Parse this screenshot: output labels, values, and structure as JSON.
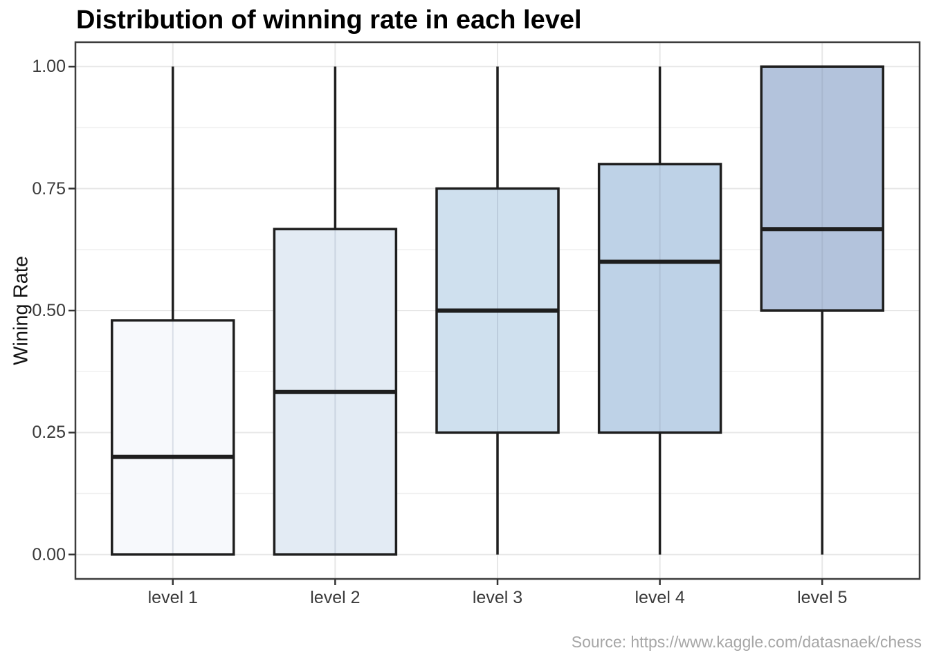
{
  "title": "Distribution of winning rate in each level",
  "source": "Source: https://www.kaggle.com/datasnaek/chess",
  "chart_data": {
    "type": "boxplot",
    "title": "Distribution of winning rate in each level",
    "xlabel": "",
    "ylabel": "Wining Rate",
    "ylim": [
      0,
      1
    ],
    "y_axis_expansion": [
      -0.05,
      1.05
    ],
    "grid": "major-and-minor",
    "yticks": [
      0.0,
      0.25,
      0.5,
      0.75,
      1.0
    ],
    "ytick_labels": [
      "0.00",
      "0.25",
      "0.50",
      "0.75",
      "1.00"
    ],
    "yticks_minor": [
      0.125,
      0.375,
      0.625,
      0.875
    ],
    "categories": [
      "level 1",
      "level 2",
      "level 3",
      "level 4",
      "level 5"
    ],
    "series": [
      {
        "category": "level 1",
        "min": 0.0,
        "q1": 0.0,
        "median": 0.2,
        "q3": 0.48,
        "max": 1.0,
        "fill": "#f7f9fc"
      },
      {
        "category": "level 2",
        "min": 0.0,
        "q1": 0.0,
        "median": 0.333,
        "q3": 0.667,
        "max": 1.0,
        "fill": "#e3ebf4"
      },
      {
        "category": "level 3",
        "min": 0.0,
        "q1": 0.25,
        "median": 0.5,
        "q3": 0.75,
        "max": 1.0,
        "fill": "#cfe0ee"
      },
      {
        "category": "level 4",
        "min": 0.0,
        "q1": 0.25,
        "median": 0.6,
        "q3": 0.8,
        "max": 1.0,
        "fill": "#bed2e7"
      },
      {
        "category": "level 5",
        "min": 0.0,
        "q1": 0.5,
        "median": 0.667,
        "q3": 1.0,
        "max": 1.0,
        "fill": "#b3c3dc"
      }
    ],
    "colors": {
      "box_stroke": "#1e1e1e",
      "panel_border": "#3c3c3c",
      "tick_mark": "#343434",
      "grid_major": "#e7e7e7",
      "grid_minor": "#f1f1f1",
      "panel_background": "#ffffff",
      "title_color": "#000000",
      "tick_label_color": "#3a3a3a",
      "source_color": "#a6a6a6"
    }
  }
}
